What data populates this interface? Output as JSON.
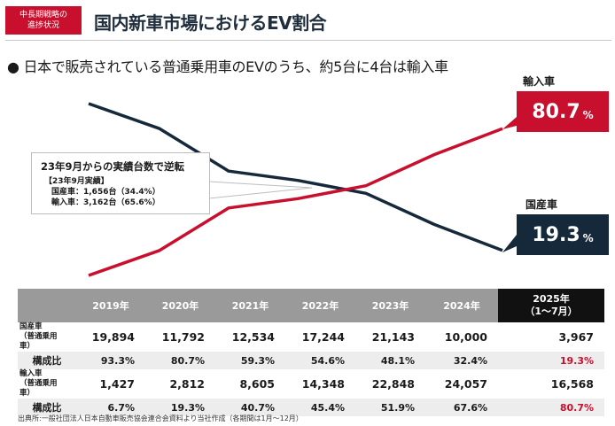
{
  "header": {
    "tag_line1": "中長期戦略の",
    "tag_line2": "進捗状況",
    "title": "国内新車市場におけるEV割合"
  },
  "bullet": "● 日本で販売されている普通乗用車のEVのうち、約5台に4台は輸入車",
  "callout": {
    "headline": "23年9月からの実績台数で逆転",
    "detail_title": "【23年9月実績】",
    "detail_domestic": "国産車：1,656台（34.4%）",
    "detail_import": "輸入車：3,162台（65.6%）"
  },
  "end_labels": {
    "import_name": "輸入車",
    "import_value": "80.7",
    "import_unit": "%",
    "domestic_name": "国産車",
    "domestic_value": "19.3",
    "domestic_unit": "%"
  },
  "colors": {
    "import": "#c8102e",
    "domestic": "#16293a"
  },
  "chart_data": {
    "type": "line",
    "categories": [
      "2019年",
      "2020年",
      "2021年",
      "2022年",
      "2023年",
      "2024年",
      "2025年（1〜7月）"
    ],
    "series": [
      {
        "name": "国産車",
        "values": [
          93.3,
          80.7,
          59.3,
          54.6,
          48.1,
          32.4,
          19.3
        ]
      },
      {
        "name": "輸入車",
        "values": [
          6.7,
          19.3,
          40.7,
          45.4,
          51.9,
          67.6,
          80.7
        ]
      }
    ],
    "ylim": [
      0,
      100
    ],
    "grid": false
  },
  "table": {
    "headers": [
      "2019年",
      "2020年",
      "2021年",
      "2022年",
      "2023年",
      "2024年"
    ],
    "last_header_line1": "2025年",
    "last_header_line2": "（1〜7月）",
    "domestic_label1": "国産車",
    "domestic_label2": "（普通乗用車）",
    "domestic_units": [
      "19,894",
      "11,792",
      "12,534",
      "17,244",
      "21,143",
      "10,000",
      "3,967"
    ],
    "ratio_label": "構成比",
    "domestic_ratio": [
      "93.3%",
      "80.7%",
      "59.3%",
      "54.6%",
      "48.1%",
      "32.4%",
      "19.3%"
    ],
    "import_label1": "輸入車",
    "import_label2": "（普通乗用車）",
    "import_units": [
      "1,427",
      "2,812",
      "8,605",
      "14,348",
      "22,848",
      "24,057",
      "16,568"
    ],
    "import_ratio": [
      "6.7%",
      "19.3%",
      "40.7%",
      "45.4%",
      "51.9%",
      "67.6%",
      "80.7%"
    ]
  },
  "source": "出典所:一般社団法人日本自動車販売協会連合会資料より当社作成（各期間は1月〜12月）"
}
